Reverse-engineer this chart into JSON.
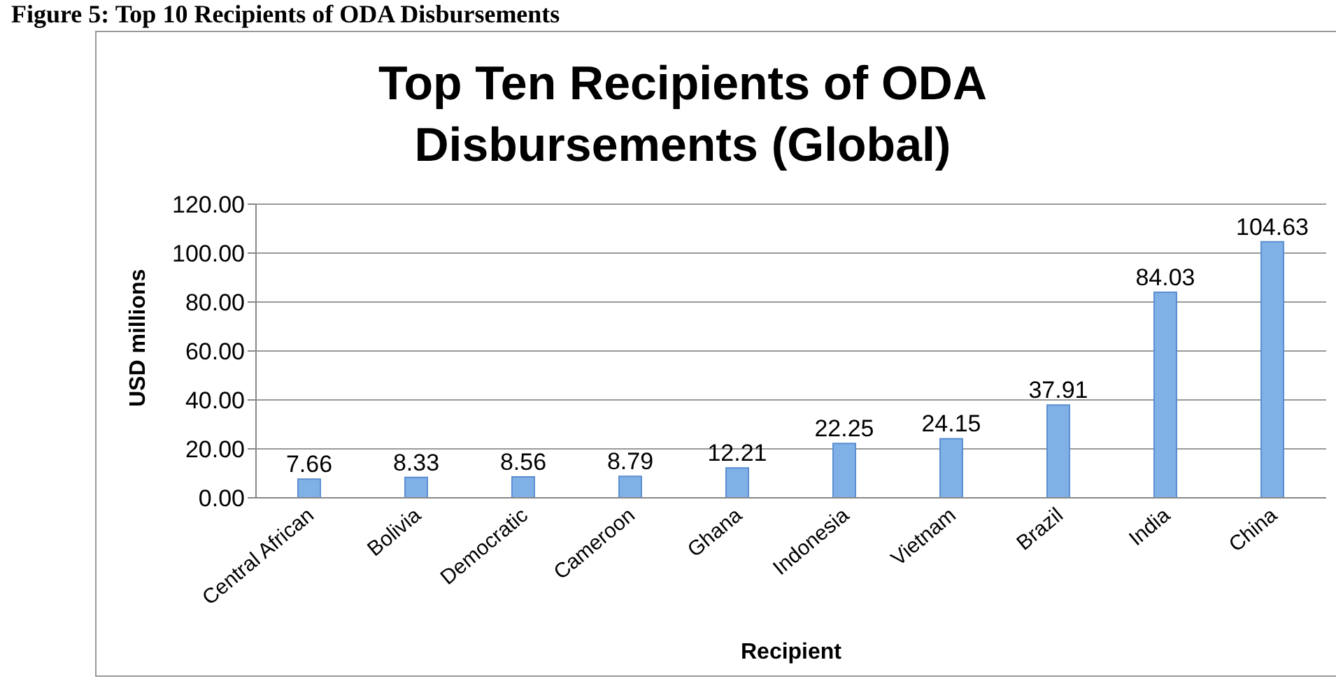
{
  "chart_data": {
    "type": "bar",
    "title": "Top Ten Recipients of ODA Disbursements (Global)",
    "xlabel": "Recipient",
    "ylabel": "USD millions",
    "annotations": [
      "Figure 5: Top 10 Recipients of ODA Disbursements"
    ],
    "categories": [
      "Central African",
      "Bolivia",
      "Democratic",
      "Cameroon",
      "Ghana",
      "Indonesia",
      "Vietnam",
      "Brazil",
      "India",
      "China"
    ],
    "values": [
      7.66,
      8.33,
      8.56,
      8.79,
      12.21,
      22.25,
      24.15,
      37.91,
      84.03,
      104.63
    ],
    "color": "#7fb0e6",
    "ylim": [
      0,
      120
    ],
    "yticks": [
      {
        "value": 0,
        "label": "0.00"
      },
      {
        "value": 20,
        "label": "20.00"
      },
      {
        "value": 40,
        "label": "40.00"
      },
      {
        "value": 60,
        "label": "60.00"
      },
      {
        "value": 80,
        "label": "80.00"
      },
      {
        "value": 100,
        "label": "100.00"
      },
      {
        "value": 120,
        "label": "120.00"
      }
    ],
    "grid": "y",
    "data_labels": true,
    "legend": false
  }
}
